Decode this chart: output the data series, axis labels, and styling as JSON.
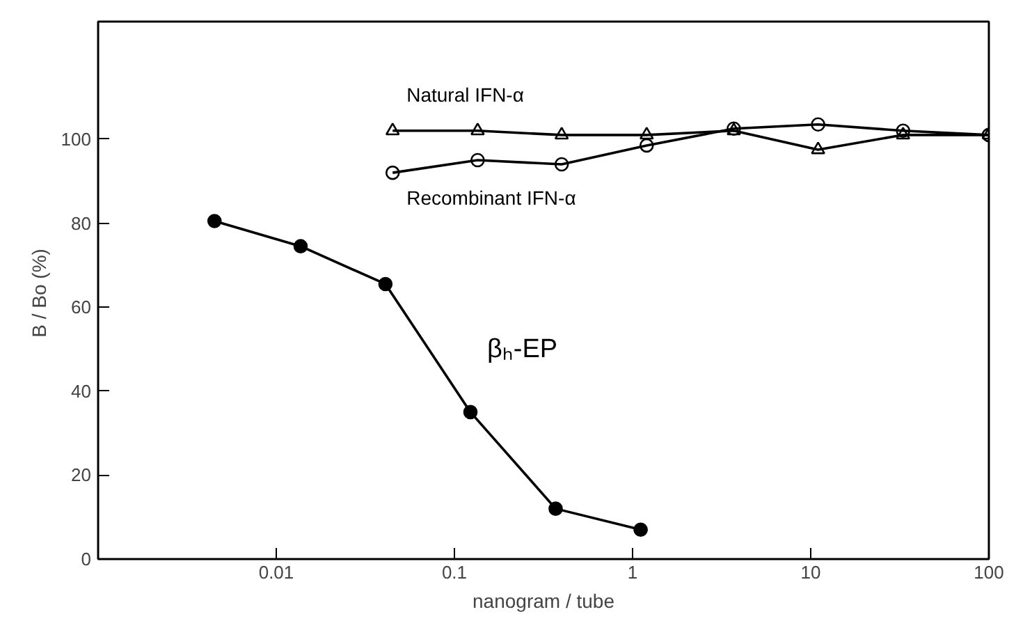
{
  "chart_data": {
    "type": "line",
    "xlabel": "nanogram / tube",
    "ylabel": "B / Bo  (%)",
    "log": "x",
    "xlim": [
      0.001,
      100
    ],
    "xticks": [
      0.01,
      0.1,
      1,
      10,
      100
    ],
    "ylim": [
      0,
      128
    ],
    "yticks": [
      0,
      20,
      40,
      60,
      80,
      100
    ],
    "grid": false,
    "line_style": "solid",
    "series": [
      {
        "name": "βₕ-EP",
        "color": "#000000",
        "marker": "circle",
        "x": [
          0.0045,
          0.0137,
          0.041,
          0.123,
          0.37,
          1.11
        ],
        "values": [
          80.5,
          74.5,
          65.5,
          35,
          12,
          7
        ]
      },
      {
        "name": "Natural IFN-α",
        "color": "#000000",
        "marker": "triangle",
        "x": [
          0.045,
          0.135,
          0.4,
          1.2,
          3.7,
          11,
          33,
          100
        ],
        "values": [
          102,
          102,
          101,
          101,
          102,
          97.5,
          101,
          101
        ]
      },
      {
        "name": "Recombinant IFN-α",
        "color": "#000000",
        "marker": "circle",
        "x": [
          0.045,
          0.135,
          0.4,
          1.2,
          3.7,
          11,
          33,
          100
        ],
        "values": [
          92,
          95,
          94,
          98.5,
          102.5,
          103.5,
          102,
          101
        ]
      }
    ]
  }
}
